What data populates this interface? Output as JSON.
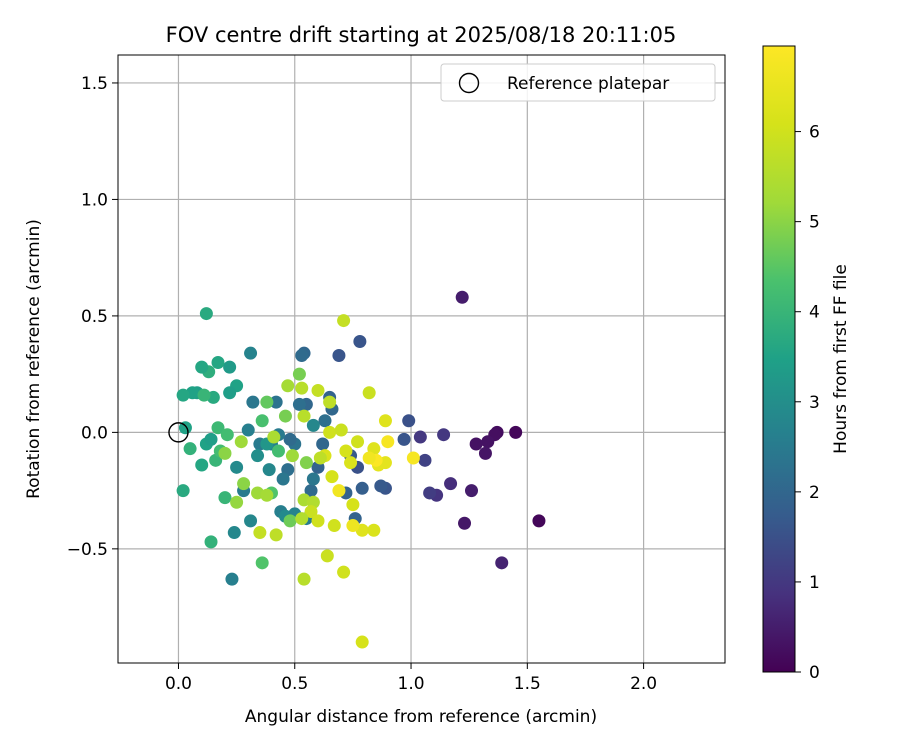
{
  "chart_data": {
    "type": "scatter",
    "title": "FOV centre drift starting at 2025/08/18 20:11:05",
    "xlabel": "Angular distance from reference (arcmin)",
    "ylabel": "Rotation from reference (arcmin)",
    "xlim": [
      -0.26,
      2.35
    ],
    "ylim": [
      -0.99,
      1.62
    ],
    "x_ticks": [
      0.0,
      0.5,
      1.0,
      1.5,
      2.0
    ],
    "x_tick_labels": [
      "0.0",
      "0.5",
      "1.0",
      "1.5",
      "2.0"
    ],
    "y_ticks": [
      -0.5,
      0.0,
      0.5,
      1.0,
      1.5
    ],
    "y_tick_labels": [
      "−0.5",
      "0.0",
      "0.5",
      "1.0",
      "1.5"
    ],
    "grid": true,
    "legend": {
      "placement": "top-right",
      "label": "Reference platepar"
    },
    "reference_point": {
      "x": 0.0,
      "y": 0.0
    },
    "colorbar": {
      "label": "Hours from first FF file",
      "range": [
        0,
        6.95
      ],
      "ticks": [
        0,
        1,
        2,
        3,
        4,
        5,
        6
      ],
      "tick_labels": [
        "0",
        "1",
        "2",
        "3",
        "4",
        "5",
        "6"
      ],
      "colormap": "viridis"
    },
    "points": [
      {
        "x": 1.22,
        "y": 0.58,
        "h": 0.5
      },
      {
        "x": 1.55,
        "y": -0.38,
        "h": 0.1
      },
      {
        "x": 1.39,
        "y": -0.56,
        "h": 0.6
      },
      {
        "x": 1.45,
        "y": 0.0,
        "h": 0.1
      },
      {
        "x": 1.37,
        "y": 0.0,
        "h": 0.2
      },
      {
        "x": 1.36,
        "y": -0.01,
        "h": 0.25
      },
      {
        "x": 1.33,
        "y": -0.04,
        "h": 0.3
      },
      {
        "x": 1.32,
        "y": -0.09,
        "h": 0.35
      },
      {
        "x": 1.28,
        "y": -0.05,
        "h": 0.3
      },
      {
        "x": 1.26,
        "y": -0.25,
        "h": 0.5
      },
      {
        "x": 1.23,
        "y": -0.39,
        "h": 0.4
      },
      {
        "x": 1.17,
        "y": -0.22,
        "h": 0.8
      },
      {
        "x": 1.14,
        "y": -0.01,
        "h": 1.0
      },
      {
        "x": 1.11,
        "y": -0.27,
        "h": 0.9
      },
      {
        "x": 1.08,
        "y": -0.26,
        "h": 1.1
      },
      {
        "x": 1.06,
        "y": -0.12,
        "h": 1.2
      },
      {
        "x": 1.04,
        "y": -0.02,
        "h": 1.0
      },
      {
        "x": 0.99,
        "y": 0.05,
        "h": 1.5
      },
      {
        "x": 0.97,
        "y": -0.03,
        "h": 1.6
      },
      {
        "x": 0.89,
        "y": -0.24,
        "h": 1.6
      },
      {
        "x": 0.87,
        "y": -0.23,
        "h": 1.7
      },
      {
        "x": 0.79,
        "y": -0.24,
        "h": 1.8
      },
      {
        "x": 0.77,
        "y": -0.15,
        "h": 1.5
      },
      {
        "x": 0.78,
        "y": 0.39,
        "h": 1.6
      },
      {
        "x": 0.69,
        "y": 0.33,
        "h": 1.6
      },
      {
        "x": 0.74,
        "y": -0.1,
        "h": 1.7
      },
      {
        "x": 0.76,
        "y": -0.37,
        "h": 1.9
      },
      {
        "x": 0.72,
        "y": -0.26,
        "h": 1.9
      },
      {
        "x": 0.66,
        "y": 0.1,
        "h": 2.0
      },
      {
        "x": 0.65,
        "y": 0.15,
        "h": 1.9
      },
      {
        "x": 0.63,
        "y": 0.05,
        "h": 2.2
      },
      {
        "x": 0.62,
        "y": -0.05,
        "h": 2.0
      },
      {
        "x": 0.6,
        "y": -0.15,
        "h": 1.9
      },
      {
        "x": 0.57,
        "y": -0.25,
        "h": 2.1
      },
      {
        "x": 0.55,
        "y": 0.12,
        "h": 2.0
      },
      {
        "x": 0.54,
        "y": 0.34,
        "h": 2.0
      },
      {
        "x": 0.53,
        "y": 0.33,
        "h": 2.1
      },
      {
        "x": 0.52,
        "y": 0.12,
        "h": 2.2
      },
      {
        "x": 0.5,
        "y": -0.05,
        "h": 2.3
      },
      {
        "x": 0.48,
        "y": -0.03,
        "h": 2.1
      },
      {
        "x": 0.47,
        "y": -0.16,
        "h": 2.2
      },
      {
        "x": 0.45,
        "y": -0.2,
        "h": 2.4
      },
      {
        "x": 0.43,
        "y": -0.01,
        "h": 2.5
      },
      {
        "x": 0.42,
        "y": 0.13,
        "h": 2.3
      },
      {
        "x": 0.4,
        "y": -0.05,
        "h": 2.6
      },
      {
        "x": 0.39,
        "y": -0.16,
        "h": 2.8
      },
      {
        "x": 0.35,
        "y": -0.05,
        "h": 2.5
      },
      {
        "x": 0.32,
        "y": 0.13,
        "h": 2.4
      },
      {
        "x": 0.31,
        "y": 0.34,
        "h": 2.7
      },
      {
        "x": 0.3,
        "y": 0.01,
        "h": 2.6
      },
      {
        "x": 0.28,
        "y": -0.25,
        "h": 2.5
      },
      {
        "x": 0.25,
        "y": -0.15,
        "h": 2.9
      },
      {
        "x": 0.24,
        "y": -0.43,
        "h": 2.8
      },
      {
        "x": 0.23,
        "y": -0.63,
        "h": 2.6
      },
      {
        "x": 0.31,
        "y": -0.38,
        "h": 2.8
      },
      {
        "x": 0.34,
        "y": -0.1,
        "h": 3.0
      },
      {
        "x": 0.38,
        "y": -0.05,
        "h": 3.2
      },
      {
        "x": 0.44,
        "y": -0.34,
        "h": 2.6
      },
      {
        "x": 0.46,
        "y": -0.36,
        "h": 2.9
      },
      {
        "x": 0.5,
        "y": -0.35,
        "h": 2.7
      },
      {
        "x": 0.55,
        "y": -0.37,
        "h": 2.5
      },
      {
        "x": 0.58,
        "y": -0.2,
        "h": 2.4
      },
      {
        "x": 0.58,
        "y": 0.03,
        "h": 2.8
      },
      {
        "x": 0.25,
        "y": 0.2,
        "h": 3.5
      },
      {
        "x": 0.22,
        "y": 0.17,
        "h": 3.4
      },
      {
        "x": 0.22,
        "y": 0.28,
        "h": 3.3
      },
      {
        "x": 0.17,
        "y": 0.3,
        "h": 3.6
      },
      {
        "x": 0.15,
        "y": 0.15,
        "h": 3.7
      },
      {
        "x": 0.13,
        "y": 0.26,
        "h": 3.8
      },
      {
        "x": 0.12,
        "y": 0.51,
        "h": 3.7
      },
      {
        "x": 0.1,
        "y": 0.28,
        "h": 3.6
      },
      {
        "x": 0.08,
        "y": 0.17,
        "h": 3.4
      },
      {
        "x": 0.06,
        "y": 0.17,
        "h": 3.5
      },
      {
        "x": 0.02,
        "y": 0.16,
        "h": 3.6
      },
      {
        "x": 0.03,
        "y": 0.02,
        "h": 3.5
      },
      {
        "x": 0.05,
        "y": -0.07,
        "h": 3.9
      },
      {
        "x": 0.02,
        "y": -0.25,
        "h": 3.7
      },
      {
        "x": 0.1,
        "y": -0.14,
        "h": 3.6
      },
      {
        "x": 0.12,
        "y": -0.05,
        "h": 3.5
      },
      {
        "x": 0.14,
        "y": -0.03,
        "h": 3.4
      },
      {
        "x": 0.14,
        "y": -0.47,
        "h": 3.9
      },
      {
        "x": 0.16,
        "y": -0.12,
        "h": 4.0
      },
      {
        "x": 0.17,
        "y": 0.02,
        "h": 4.1
      },
      {
        "x": 0.2,
        "y": -0.28,
        "h": 4.0
      },
      {
        "x": 0.21,
        "y": -0.01,
        "h": 4.2
      },
      {
        "x": 0.11,
        "y": 0.16,
        "h": 4.0
      },
      {
        "x": 0.18,
        "y": -0.08,
        "h": 4.2
      },
      {
        "x": 0.36,
        "y": -0.56,
        "h": 4.4
      },
      {
        "x": 0.36,
        "y": 0.05,
        "h": 4.3
      },
      {
        "x": 0.38,
        "y": 0.13,
        "h": 4.6
      },
      {
        "x": 0.4,
        "y": -0.26,
        "h": 4.4
      },
      {
        "x": 0.43,
        "y": -0.08,
        "h": 4.2
      },
      {
        "x": 0.46,
        "y": 0.07,
        "h": 4.8
      },
      {
        "x": 0.48,
        "y": -0.38,
        "h": 4.7
      },
      {
        "x": 0.52,
        "y": 0.25,
        "h": 4.8
      },
      {
        "x": 0.55,
        "y": -0.13,
        "h": 4.9
      },
      {
        "x": 0.28,
        "y": -0.22,
        "h": 5.0
      },
      {
        "x": 0.27,
        "y": -0.04,
        "h": 5.2
      },
      {
        "x": 0.25,
        "y": -0.3,
        "h": 5.1
      },
      {
        "x": 0.2,
        "y": -0.09,
        "h": 5.0
      },
      {
        "x": 0.34,
        "y": -0.26,
        "h": 5.2
      },
      {
        "x": 0.38,
        "y": -0.27,
        "h": 5.3
      },
      {
        "x": 0.41,
        "y": -0.02,
        "h": 5.4
      },
      {
        "x": 0.47,
        "y": 0.2,
        "h": 5.3
      },
      {
        "x": 0.54,
        "y": -0.29,
        "h": 5.4
      },
      {
        "x": 0.58,
        "y": -0.3,
        "h": 5.5
      },
      {
        "x": 0.53,
        "y": 0.19,
        "h": 5.6
      },
      {
        "x": 0.42,
        "y": -0.44,
        "h": 5.7
      },
      {
        "x": 0.35,
        "y": -0.43,
        "h": 5.8
      },
      {
        "x": 0.54,
        "y": -0.63,
        "h": 5.6
      },
      {
        "x": 0.57,
        "y": -0.34,
        "h": 5.9
      },
      {
        "x": 0.6,
        "y": -0.38,
        "h": 6.0
      },
      {
        "x": 0.6,
        "y": 0.18,
        "h": 5.8
      },
      {
        "x": 0.65,
        "y": 0.13,
        "h": 5.7
      },
      {
        "x": 0.71,
        "y": 0.48,
        "h": 5.8
      },
      {
        "x": 0.71,
        "y": -0.6,
        "h": 6.0
      },
      {
        "x": 0.64,
        "y": -0.53,
        "h": 5.9
      },
      {
        "x": 0.67,
        "y": -0.4,
        "h": 6.0
      },
      {
        "x": 0.66,
        "y": -0.19,
        "h": 6.1
      },
      {
        "x": 0.65,
        "y": 0.0,
        "h": 6.0
      },
      {
        "x": 0.7,
        "y": 0.01,
        "h": 5.9
      },
      {
        "x": 0.72,
        "y": -0.08,
        "h": 6.1
      },
      {
        "x": 0.74,
        "y": -0.13,
        "h": 6.2
      },
      {
        "x": 0.75,
        "y": -0.31,
        "h": 6.1
      },
      {
        "x": 0.77,
        "y": -0.04,
        "h": 6.0
      },
      {
        "x": 0.82,
        "y": 0.17,
        "h": 5.9
      },
      {
        "x": 0.79,
        "y": -0.9,
        "h": 6.1
      },
      {
        "x": 0.79,
        "y": -0.42,
        "h": 6.3
      },
      {
        "x": 0.84,
        "y": -0.42,
        "h": 6.2
      },
      {
        "x": 0.84,
        "y": -0.07,
        "h": 6.3
      },
      {
        "x": 0.86,
        "y": -0.14,
        "h": 6.4
      },
      {
        "x": 0.89,
        "y": 0.05,
        "h": 6.3
      },
      {
        "x": 0.89,
        "y": -0.13,
        "h": 6.4
      },
      {
        "x": 0.9,
        "y": -0.04,
        "h": 6.8
      },
      {
        "x": 0.85,
        "y": -0.12,
        "h": 6.9
      },
      {
        "x": 0.82,
        "y": -0.11,
        "h": 6.7
      },
      {
        "x": 0.75,
        "y": -0.4,
        "h": 6.6
      },
      {
        "x": 0.69,
        "y": -0.25,
        "h": 6.7
      },
      {
        "x": 1.01,
        "y": -0.11,
        "h": 6.8
      },
      {
        "x": 0.63,
        "y": -0.1,
        "h": 6.2
      },
      {
        "x": 0.53,
        "y": -0.37,
        "h": 5.5
      },
      {
        "x": 0.61,
        "y": -0.11,
        "h": 5.7
      },
      {
        "x": 0.54,
        "y": 0.07,
        "h": 5.6
      },
      {
        "x": 0.49,
        "y": -0.1,
        "h": 5.2
      }
    ]
  }
}
